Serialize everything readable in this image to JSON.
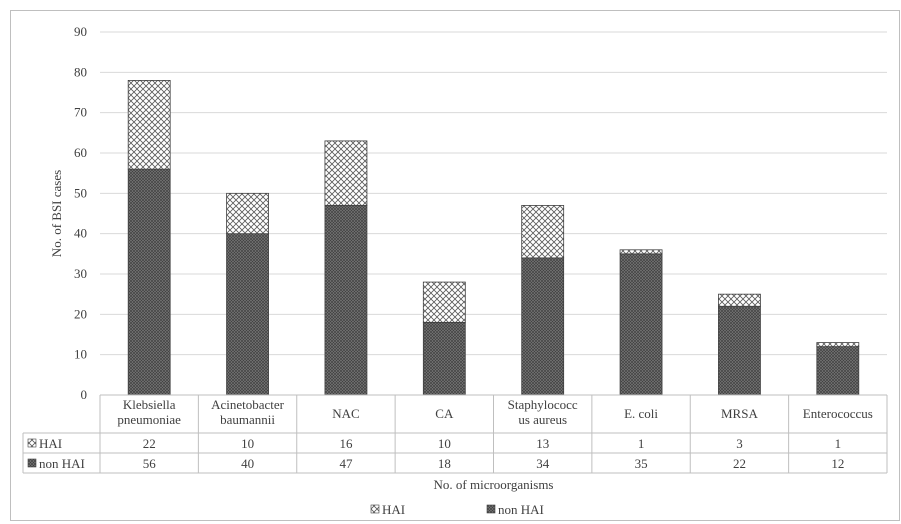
{
  "chart_data": {
    "type": "bar",
    "stacked": true,
    "ylabel": "No. of BSI cases",
    "xlabel": "No. of microorganisms",
    "ylim": [
      0,
      90
    ],
    "yticks": [
      0,
      10,
      20,
      30,
      40,
      50,
      60,
      70,
      80,
      90
    ],
    "categories": [
      [
        "Klebsiella",
        "pneumoniae"
      ],
      [
        "Acinetobacter",
        "baumannii"
      ],
      [
        "NAC"
      ],
      [
        "CA"
      ],
      [
        "Staphylococc",
        "us aureus"
      ],
      [
        "E. coli"
      ],
      [
        "MRSA"
      ],
      [
        "Enterococcus"
      ]
    ],
    "series": [
      {
        "name": "HAI",
        "values": [
          22,
          10,
          16,
          10,
          13,
          1,
          3,
          1
        ],
        "pattern": "crosshatch"
      },
      {
        "name": "non HAI",
        "values": [
          56,
          40,
          47,
          18,
          34,
          35,
          22,
          12
        ],
        "pattern": "dense"
      }
    ],
    "grid": true,
    "legend": "bottom",
    "data_table": true
  },
  "colors": {
    "bar_dark": "#595959",
    "bar_light": "#ffffff",
    "grid": "#d9d9d9",
    "axis": "#bfbfbf",
    "text": "#404040"
  }
}
